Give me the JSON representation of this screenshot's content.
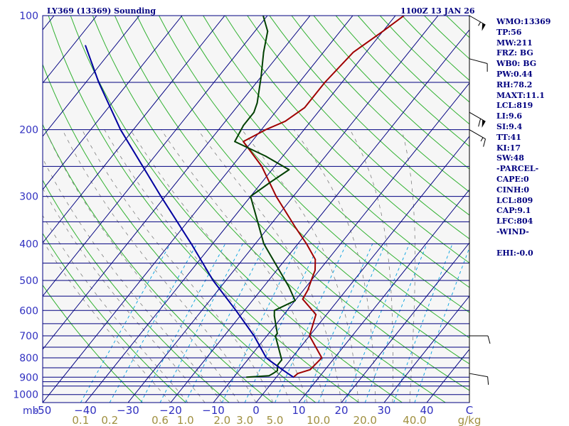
{
  "header": {
    "title": "LY369 (13369) Sounding",
    "timestamp": "1100Z 13 JAN 26"
  },
  "indices": [
    "WMO:13369",
    "TP:56",
    "MW:211",
    "FRZ: BG",
    "WB0: BG",
    "PW:0.44",
    "RH:78.2",
    "MAXT:11.1",
    "LCL:819",
    "LI:9.6",
    "SI:9.4",
    "TT:41",
    "KI:17",
    "SW:48",
    "-PARCEL-",
    "CAPE:0",
    "CINH:0",
    "LCL:809",
    "CAP:9.1",
    "LFC:804",
    "-WIND-",
    "",
    "EHI:-0.0"
  ],
  "colors": {
    "isobar": "#000080",
    "isotherm": "#000080",
    "dry_adiabat": "#00a000",
    "moist_adiabat": "#808080",
    "mixing_ratio": "#00a0e0",
    "temperature": "#a00000",
    "dewpoint": "#004000",
    "parcel": "#0000a0",
    "axis_text": "#3030c0",
    "mixing_text": "#a09040"
  },
  "chart_data": {
    "type": "skew-t log-p sounding",
    "pressure_unit": "mb",
    "temperature_unit": "C",
    "mixing_ratio_unit": "g/kg",
    "pressure_range": [
      1050,
      100
    ],
    "temperature_range_at_surface": [
      -50,
      50
    ],
    "pressure_tick_labels": [
      {
        "p": 100,
        "label": "100"
      },
      {
        "p": 200,
        "label": "200"
      },
      {
        "p": 300,
        "label": "300"
      },
      {
        "p": 400,
        "label": "400"
      },
      {
        "p": 500,
        "label": "500"
      },
      {
        "p": 600,
        "label": "600"
      },
      {
        "p": 700,
        "label": "700"
      },
      {
        "p": 800,
        "label": "800"
      },
      {
        "p": 900,
        "label": "900"
      },
      {
        "p": 1000,
        "label": "1000"
      }
    ],
    "isobar_levels": [
      100,
      150,
      200,
      250,
      300,
      350,
      400,
      450,
      500,
      550,
      600,
      650,
      700,
      750,
      800,
      850,
      900,
      925,
      950,
      1000
    ],
    "temperature_tick_labels": [
      {
        "t": -50,
        "label": "-50"
      },
      {
        "t": -40,
        "label": "−40"
      },
      {
        "t": -30,
        "label": "−30"
      },
      {
        "t": -20,
        "label": "−20"
      },
      {
        "t": -10,
        "label": "−10"
      },
      {
        "t": 0,
        "label": "0"
      },
      {
        "t": 10,
        "label": "10"
      },
      {
        "t": 20,
        "label": "20"
      },
      {
        "t": 30,
        "label": "30"
      },
      {
        "t": 40,
        "label": "40"
      },
      {
        "t": 50,
        "label": "C"
      }
    ],
    "mixing_ratio_labels": [
      {
        "w": 0.1,
        "label": "0.1"
      },
      {
        "w": 0.2,
        "label": "0.2"
      },
      {
        "w": 0.6,
        "label": "0.6"
      },
      {
        "w": 1.0,
        "label": "1.0"
      },
      {
        "w": 2.0,
        "label": "2.0"
      },
      {
        "w": 3.0,
        "label": "3.0"
      },
      {
        "w": 5.0,
        "label": "5.0"
      },
      {
        "w": 10.0,
        "label": "10.0"
      },
      {
        "w": 20.0,
        "label": "20.0"
      },
      {
        "w": 40.0,
        "label": "40.0"
      }
    ],
    "mixing_ratio_lines": [
      0.1,
      0.2,
      0.4,
      0.6,
      1,
      2,
      3,
      5,
      8,
      10,
      15,
      20,
      30,
      40
    ],
    "pressure_axis_label": "mb",
    "mixing_axis_label": "g/kg",
    "series": [
      {
        "key": "temperature",
        "points": [
          {
            "p": 900,
            "t": 4
          },
          {
            "p": 880,
            "t": 4.3
          },
          {
            "p": 860,
            "t": 6.5
          },
          {
            "p": 800,
            "t": 7
          },
          {
            "p": 700,
            "t": 0
          },
          {
            "p": 615,
            "t": -2.5
          },
          {
            "p": 560,
            "t": -8.5
          },
          {
            "p": 530,
            "t": -9
          },
          {
            "p": 500,
            "t": -10
          },
          {
            "p": 470,
            "t": -11
          },
          {
            "p": 440,
            "t": -13
          },
          {
            "p": 400,
            "t": -18
          },
          {
            "p": 360,
            "t": -24
          },
          {
            "p": 300,
            "t": -34
          },
          {
            "p": 250,
            "t": -43
          },
          {
            "p": 215,
            "t": -52
          },
          {
            "p": 200,
            "t": -49
          },
          {
            "p": 190,
            "t": -46
          },
          {
            "p": 175,
            "t": -44
          },
          {
            "p": 150,
            "t": -44
          },
          {
            "p": 125,
            "t": -43
          },
          {
            "p": 110,
            "t": -40
          },
          {
            "p": 100,
            "t": -38
          }
        ]
      },
      {
        "key": "dewpoint",
        "points": [
          {
            "p": 900,
            "t": -7
          },
          {
            "p": 892,
            "t": -2
          },
          {
            "p": 880,
            "t": -1.5
          },
          {
            "p": 865,
            "t": -1
          },
          {
            "p": 835,
            "t": -2
          },
          {
            "p": 810,
            "t": -2
          },
          {
            "p": 700,
            "t": -8
          },
          {
            "p": 690,
            "t": -8
          },
          {
            "p": 620,
            "t": -12
          },
          {
            "p": 600,
            "t": -13
          },
          {
            "p": 565,
            "t": -10
          },
          {
            "p": 520,
            "t": -14
          },
          {
            "p": 400,
            "t": -28
          },
          {
            "p": 300,
            "t": -40
          },
          {
            "p": 275,
            "t": -38
          },
          {
            "p": 255,
            "t": -36
          },
          {
            "p": 235,
            "t": -44
          },
          {
            "p": 215,
            "t": -54
          },
          {
            "p": 195,
            "t": -55
          },
          {
            "p": 180,
            "t": -55
          },
          {
            "p": 170,
            "t": -56
          },
          {
            "p": 145,
            "t": -60
          },
          {
            "p": 125,
            "t": -64
          },
          {
            "p": 110,
            "t": -67
          },
          {
            "p": 100,
            "t": -71
          }
        ]
      },
      {
        "key": "parcel",
        "points": [
          {
            "p": 900,
            "t": 4
          },
          {
            "p": 860,
            "t": 0
          },
          {
            "p": 820,
            "t": -4
          },
          {
            "p": 800,
            "t": -6
          },
          {
            "p": 700,
            "t": -13
          },
          {
            "p": 600,
            "t": -22
          },
          {
            "p": 500,
            "t": -33
          },
          {
            "p": 400,
            "t": -45
          },
          {
            "p": 300,
            "t": -61
          },
          {
            "p": 200,
            "t": -83
          },
          {
            "p": 150,
            "t": -97
          },
          {
            "p": 120,
            "t": -107
          }
        ]
      }
    ],
    "wind_barbs": [
      {
        "p": 100,
        "direction": 300,
        "speed_kt": 55
      },
      {
        "p": 130,
        "direction": 285,
        "speed_kt": 10
      },
      {
        "p": 180,
        "direction": 300,
        "speed_kt": 60
      },
      {
        "p": 200,
        "direction": 300,
        "speed_kt": 15
      },
      {
        "p": 700,
        "direction": 270,
        "speed_kt": 10
      },
      {
        "p": 880,
        "direction": 280,
        "speed_kt": 10
      }
    ],
    "grid": true
  }
}
